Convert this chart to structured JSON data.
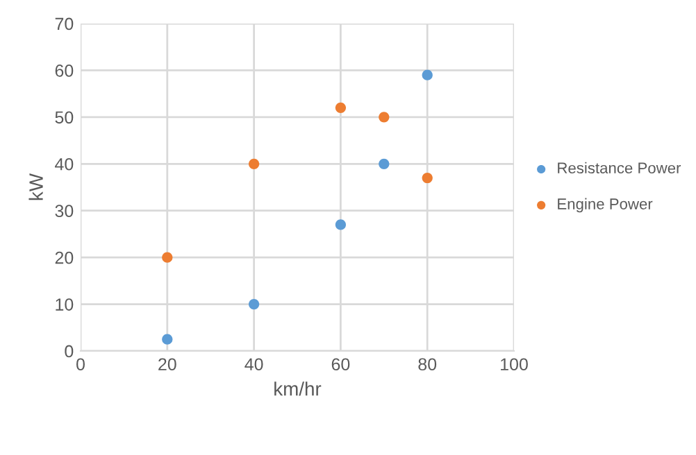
{
  "chart_data": {
    "type": "scatter",
    "xlabel": "km/hr",
    "ylabel": "kW",
    "x": [
      20,
      40,
      60,
      70,
      80
    ],
    "series": [
      {
        "name": "Resistance Power",
        "color": "#5b9bd5",
        "values": [
          2.5,
          10,
          27,
          40,
          59
        ]
      },
      {
        "name": "Engine Power",
        "color": "#ed7d31",
        "values": [
          20,
          40,
          52,
          50,
          37
        ]
      }
    ],
    "xlim": [
      0,
      100
    ],
    "xticks": [
      0,
      20,
      40,
      60,
      80,
      100
    ],
    "ylim": [
      0,
      70
    ],
    "yticks": [
      0,
      10,
      20,
      30,
      40,
      50,
      60,
      70
    ],
    "grid": true,
    "legend": "right",
    "marker": "circle"
  }
}
